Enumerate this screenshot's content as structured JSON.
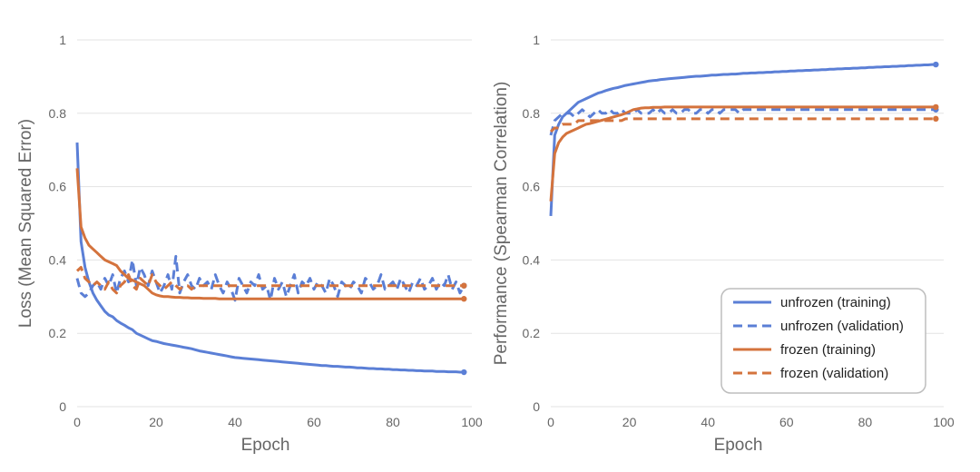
{
  "chart_data": [
    {
      "type": "line",
      "title": "",
      "xlabel": "Epoch",
      "ylabel": "Loss (Mean Squared Error)",
      "xlim": [
        0,
        100
      ],
      "ylim": [
        0,
        1
      ],
      "x_ticks": [
        "0",
        "20",
        "40",
        "60",
        "80",
        "100"
      ],
      "y_ticks": [
        "0",
        "0.2",
        "0.4",
        "0.6",
        "0.8",
        "1"
      ],
      "grid": true,
      "x": [
        0,
        1,
        2,
        3,
        4,
        5,
        6,
        7,
        8,
        9,
        10,
        11,
        12,
        13,
        14,
        15,
        16,
        17,
        18,
        19,
        20,
        21,
        22,
        23,
        24,
        25,
        26,
        27,
        28,
        29,
        30,
        31,
        32,
        33,
        34,
        35,
        36,
        37,
        38,
        39,
        40,
        41,
        42,
        43,
        44,
        45,
        46,
        47,
        48,
        49,
        50,
        51,
        52,
        53,
        54,
        55,
        56,
        57,
        58,
        59,
        60,
        61,
        62,
        63,
        64,
        65,
        66,
        67,
        68,
        69,
        70,
        71,
        72,
        73,
        74,
        75,
        76,
        77,
        78,
        79,
        80,
        81,
        82,
        83,
        84,
        85,
        86,
        87,
        88,
        89,
        90,
        91,
        92,
        93,
        94,
        95,
        96,
        97,
        98
      ],
      "series": [
        {
          "name": "unfrozen (training)",
          "color": "#5b7fd6",
          "dash": "solid",
          "values": [
            0.72,
            0.45,
            0.38,
            0.34,
            0.31,
            0.29,
            0.275,
            0.26,
            0.25,
            0.245,
            0.235,
            0.228,
            0.222,
            0.215,
            0.21,
            0.2,
            0.195,
            0.19,
            0.185,
            0.18,
            0.178,
            0.175,
            0.172,
            0.17,
            0.168,
            0.166,
            0.164,
            0.162,
            0.16,
            0.158,
            0.155,
            0.152,
            0.15,
            0.148,
            0.146,
            0.144,
            0.142,
            0.14,
            0.138,
            0.136,
            0.134,
            0.133,
            0.132,
            0.131,
            0.13,
            0.129,
            0.128,
            0.127,
            0.126,
            0.125,
            0.124,
            0.123,
            0.122,
            0.121,
            0.12,
            0.119,
            0.118,
            0.117,
            0.116,
            0.115,
            0.114,
            0.113,
            0.112,
            0.112,
            0.111,
            0.11,
            0.11,
            0.109,
            0.108,
            0.108,
            0.107,
            0.106,
            0.106,
            0.105,
            0.104,
            0.104,
            0.103,
            0.103,
            0.102,
            0.102,
            0.101,
            0.101,
            0.1,
            0.1,
            0.099,
            0.099,
            0.098,
            0.098,
            0.097,
            0.097,
            0.097,
            0.096,
            0.096,
            0.096,
            0.095,
            0.095,
            0.095,
            0.094,
            0.094
          ]
        },
        {
          "name": "unfrozen (validation)",
          "color": "#5b7fd6",
          "dash": "dashed",
          "values": [
            0.35,
            0.31,
            0.3,
            0.31,
            0.33,
            0.34,
            0.32,
            0.35,
            0.33,
            0.36,
            0.31,
            0.35,
            0.37,
            0.34,
            0.4,
            0.33,
            0.38,
            0.36,
            0.33,
            0.37,
            0.34,
            0.31,
            0.33,
            0.36,
            0.32,
            0.41,
            0.31,
            0.34,
            0.36,
            0.33,
            0.32,
            0.35,
            0.33,
            0.34,
            0.32,
            0.36,
            0.33,
            0.31,
            0.34,
            0.32,
            0.29,
            0.35,
            0.33,
            0.31,
            0.34,
            0.33,
            0.36,
            0.32,
            0.33,
            0.29,
            0.35,
            0.32,
            0.34,
            0.3,
            0.33,
            0.36,
            0.31,
            0.34,
            0.33,
            0.35,
            0.32,
            0.34,
            0.33,
            0.31,
            0.35,
            0.33,
            0.3,
            0.34,
            0.33,
            0.32,
            0.34,
            0.33,
            0.31,
            0.35,
            0.34,
            0.32,
            0.33,
            0.36,
            0.32,
            0.33,
            0.34,
            0.32,
            0.35,
            0.33,
            0.31,
            0.34,
            0.33,
            0.35,
            0.32,
            0.33,
            0.35,
            0.32,
            0.34,
            0.33,
            0.36,
            0.32,
            0.34,
            0.31,
            0.33
          ]
        },
        {
          "name": "frozen (training)",
          "color": "#d4733d",
          "dash": "solid",
          "values": [
            0.65,
            0.49,
            0.46,
            0.44,
            0.43,
            0.42,
            0.41,
            0.4,
            0.395,
            0.39,
            0.385,
            0.37,
            0.36,
            0.35,
            0.345,
            0.34,
            0.335,
            0.33,
            0.32,
            0.31,
            0.305,
            0.302,
            0.3,
            0.3,
            0.299,
            0.298,
            0.298,
            0.297,
            0.297,
            0.296,
            0.296,
            0.296,
            0.295,
            0.295,
            0.295,
            0.295,
            0.294,
            0.294,
            0.294,
            0.294,
            0.294,
            0.294,
            0.294,
            0.294,
            0.294,
            0.294,
            0.294,
            0.294,
            0.294,
            0.294,
            0.294,
            0.294,
            0.294,
            0.294,
            0.294,
            0.294,
            0.294,
            0.294,
            0.294,
            0.294,
            0.294,
            0.294,
            0.294,
            0.294,
            0.294,
            0.294,
            0.294,
            0.294,
            0.294,
            0.294,
            0.294,
            0.294,
            0.294,
            0.294,
            0.294,
            0.294,
            0.294,
            0.294,
            0.294,
            0.294,
            0.294,
            0.294,
            0.294,
            0.294,
            0.294,
            0.294,
            0.294,
            0.294,
            0.294,
            0.294,
            0.294,
            0.294,
            0.294,
            0.294,
            0.294,
            0.294,
            0.294,
            0.294,
            0.294
          ]
        },
        {
          "name": "frozen (validation)",
          "color": "#d4733d",
          "dash": "dashed",
          "values": [
            0.37,
            0.38,
            0.35,
            0.34,
            0.33,
            0.34,
            0.33,
            0.32,
            0.34,
            0.32,
            0.31,
            0.33,
            0.34,
            0.36,
            0.33,
            0.32,
            0.35,
            0.34,
            0.33,
            0.36,
            0.34,
            0.33,
            0.32,
            0.33,
            0.34,
            0.33,
            0.32,
            0.33,
            0.33,
            0.32,
            0.33,
            0.33,
            0.33,
            0.33,
            0.33,
            0.33,
            0.33,
            0.33,
            0.33,
            0.33,
            0.33,
            0.33,
            0.33,
            0.33,
            0.33,
            0.33,
            0.33,
            0.33,
            0.33,
            0.33,
            0.33,
            0.33,
            0.33,
            0.33,
            0.33,
            0.33,
            0.33,
            0.33,
            0.33,
            0.33,
            0.33,
            0.33,
            0.33,
            0.33,
            0.33,
            0.33,
            0.33,
            0.33,
            0.33,
            0.33,
            0.33,
            0.33,
            0.33,
            0.33,
            0.33,
            0.33,
            0.33,
            0.33,
            0.33,
            0.33,
            0.33,
            0.33,
            0.33,
            0.33,
            0.33,
            0.33,
            0.33,
            0.33,
            0.33,
            0.33,
            0.33,
            0.33,
            0.33,
            0.33,
            0.33,
            0.33,
            0.33,
            0.33,
            0.33
          ]
        }
      ]
    },
    {
      "type": "line",
      "title": "",
      "xlabel": "Epoch",
      "ylabel": "Performance (Spearman Correlation)",
      "xlim": [
        0,
        100
      ],
      "ylim": [
        0,
        1
      ],
      "x_ticks": [
        "0",
        "20",
        "40",
        "60",
        "80",
        "100"
      ],
      "y_ticks": [
        "0",
        "0.2",
        "0.4",
        "0.6",
        "0.8",
        "1"
      ],
      "grid": true,
      "legend_position": "bottom-right",
      "x": [
        0,
        1,
        2,
        3,
        4,
        5,
        6,
        7,
        8,
        9,
        10,
        11,
        12,
        13,
        14,
        15,
        16,
        17,
        18,
        19,
        20,
        21,
        22,
        23,
        24,
        25,
        26,
        27,
        28,
        29,
        30,
        31,
        32,
        33,
        34,
        35,
        36,
        37,
        38,
        39,
        40,
        41,
        42,
        43,
        44,
        45,
        46,
        47,
        48,
        49,
        50,
        51,
        52,
        53,
        54,
        55,
        56,
        57,
        58,
        59,
        60,
        61,
        62,
        63,
        64,
        65,
        66,
        67,
        68,
        69,
        70,
        71,
        72,
        73,
        74,
        75,
        76,
        77,
        78,
        79,
        80,
        81,
        82,
        83,
        84,
        85,
        86,
        87,
        88,
        89,
        90,
        91,
        92,
        93,
        94,
        95,
        96,
        97,
        98
      ],
      "series": [
        {
          "name": "unfrozen (training)",
          "color": "#5b7fd6",
          "dash": "solid",
          "values": [
            0.52,
            0.74,
            0.77,
            0.79,
            0.8,
            0.81,
            0.82,
            0.83,
            0.835,
            0.84,
            0.845,
            0.85,
            0.855,
            0.858,
            0.862,
            0.865,
            0.868,
            0.87,
            0.873,
            0.876,
            0.878,
            0.88,
            0.882,
            0.884,
            0.886,
            0.888,
            0.889,
            0.89,
            0.892,
            0.893,
            0.894,
            0.895,
            0.896,
            0.897,
            0.898,
            0.899,
            0.9,
            0.901,
            0.901,
            0.902,
            0.903,
            0.904,
            0.904,
            0.905,
            0.906,
            0.906,
            0.907,
            0.907,
            0.908,
            0.909,
            0.909,
            0.91,
            0.91,
            0.911,
            0.911,
            0.912,
            0.912,
            0.913,
            0.913,
            0.914,
            0.914,
            0.915,
            0.915,
            0.916,
            0.916,
            0.917,
            0.917,
            0.918,
            0.918,
            0.919,
            0.919,
            0.92,
            0.92,
            0.921,
            0.921,
            0.922,
            0.922,
            0.923,
            0.923,
            0.924,
            0.924,
            0.925,
            0.925,
            0.926,
            0.926,
            0.927,
            0.927,
            0.928,
            0.928,
            0.929,
            0.929,
            0.93,
            0.93,
            0.931,
            0.931,
            0.932,
            0.932,
            0.933,
            0.933
          ]
        },
        {
          "name": "unfrozen (validation)",
          "color": "#5b7fd6",
          "dash": "dashed",
          "values": [
            0.74,
            0.78,
            0.79,
            0.8,
            0.8,
            0.8,
            0.79,
            0.8,
            0.81,
            0.8,
            0.79,
            0.8,
            0.81,
            0.8,
            0.8,
            0.81,
            0.8,
            0.8,
            0.81,
            0.8,
            0.8,
            0.8,
            0.81,
            0.8,
            0.8,
            0.8,
            0.81,
            0.8,
            0.81,
            0.8,
            0.8,
            0.81,
            0.8,
            0.8,
            0.81,
            0.81,
            0.8,
            0.8,
            0.81,
            0.81,
            0.8,
            0.81,
            0.81,
            0.8,
            0.81,
            0.81,
            0.81,
            0.81,
            0.8,
            0.81,
            0.81,
            0.81,
            0.81,
            0.81,
            0.81,
            0.81,
            0.81,
            0.81,
            0.81,
            0.81,
            0.81,
            0.81,
            0.81,
            0.81,
            0.81,
            0.81,
            0.81,
            0.81,
            0.81,
            0.81,
            0.81,
            0.81,
            0.81,
            0.81,
            0.81,
            0.81,
            0.81,
            0.81,
            0.81,
            0.81,
            0.81,
            0.81,
            0.81,
            0.81,
            0.81,
            0.81,
            0.81,
            0.81,
            0.81,
            0.81,
            0.81,
            0.81,
            0.81,
            0.81,
            0.81,
            0.81,
            0.81,
            0.81,
            0.81
          ]
        },
        {
          "name": "frozen (training)",
          "color": "#d4733d",
          "dash": "solid",
          "values": [
            0.56,
            0.69,
            0.72,
            0.735,
            0.745,
            0.75,
            0.755,
            0.76,
            0.765,
            0.77,
            0.772,
            0.775,
            0.778,
            0.781,
            0.784,
            0.787,
            0.79,
            0.793,
            0.796,
            0.8,
            0.805,
            0.81,
            0.812,
            0.814,
            0.815,
            0.815,
            0.816,
            0.816,
            0.816,
            0.817,
            0.817,
            0.817,
            0.817,
            0.817,
            0.817,
            0.817,
            0.817,
            0.817,
            0.817,
            0.817,
            0.817,
            0.817,
            0.817,
            0.817,
            0.817,
            0.817,
            0.817,
            0.817,
            0.817,
            0.817,
            0.817,
            0.817,
            0.817,
            0.817,
            0.817,
            0.817,
            0.817,
            0.817,
            0.817,
            0.817,
            0.817,
            0.817,
            0.817,
            0.817,
            0.817,
            0.817,
            0.817,
            0.817,
            0.817,
            0.817,
            0.817,
            0.817,
            0.817,
            0.817,
            0.817,
            0.817,
            0.817,
            0.817,
            0.817,
            0.817,
            0.817,
            0.817,
            0.817,
            0.817,
            0.817,
            0.817,
            0.817,
            0.817,
            0.817,
            0.817,
            0.817,
            0.817,
            0.817,
            0.817,
            0.817,
            0.817,
            0.817,
            0.817,
            0.817
          ]
        },
        {
          "name": "frozen (validation)",
          "color": "#d4733d",
          "dash": "dashed",
          "values": [
            0.75,
            0.76,
            0.76,
            0.77,
            0.77,
            0.77,
            0.77,
            0.78,
            0.78,
            0.78,
            0.78,
            0.78,
            0.78,
            0.78,
            0.78,
            0.78,
            0.78,
            0.78,
            0.78,
            0.785,
            0.785,
            0.785,
            0.785,
            0.785,
            0.785,
            0.785,
            0.785,
            0.785,
            0.785,
            0.785,
            0.785,
            0.785,
            0.785,
            0.785,
            0.785,
            0.785,
            0.785,
            0.785,
            0.785,
            0.785,
            0.785,
            0.785,
            0.785,
            0.785,
            0.785,
            0.785,
            0.785,
            0.785,
            0.785,
            0.785,
            0.785,
            0.785,
            0.785,
            0.785,
            0.785,
            0.785,
            0.785,
            0.785,
            0.785,
            0.785,
            0.785,
            0.785,
            0.785,
            0.785,
            0.785,
            0.785,
            0.785,
            0.785,
            0.785,
            0.785,
            0.785,
            0.785,
            0.785,
            0.785,
            0.785,
            0.785,
            0.785,
            0.785,
            0.785,
            0.785,
            0.785,
            0.785,
            0.785,
            0.785,
            0.785,
            0.785,
            0.785,
            0.785,
            0.785,
            0.785,
            0.785,
            0.785,
            0.785,
            0.785,
            0.785,
            0.785,
            0.785,
            0.785,
            0.785
          ]
        }
      ]
    }
  ],
  "legend": {
    "position": "bottom-right",
    "items": [
      {
        "label": "unfrozen (training)",
        "color": "#5b7fd6",
        "dash": "solid"
      },
      {
        "label": "unfrozen (validation)",
        "color": "#5b7fd6",
        "dash": "dashed"
      },
      {
        "label": "frozen (training)",
        "color": "#d4733d",
        "dash": "solid"
      },
      {
        "label": "frozen (validation)",
        "color": "#d4733d",
        "dash": "dashed"
      }
    ]
  }
}
